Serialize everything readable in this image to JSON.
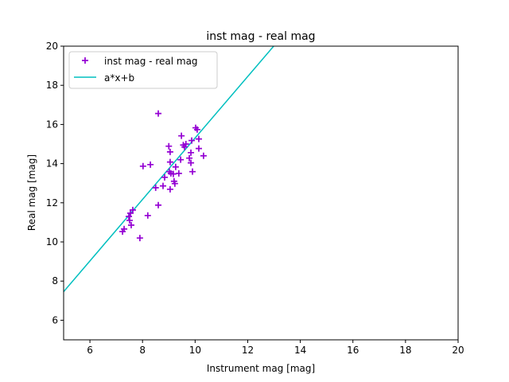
{
  "chart_data": {
    "type": "scatter",
    "title": "inst mag - real mag",
    "xlabel": "Instrument mag [mag]",
    "ylabel": "Real mag [mag]",
    "xlim": [
      5,
      20
    ],
    "ylim": [
      5,
      20
    ],
    "xticks": [
      6,
      8,
      10,
      12,
      14,
      16,
      18,
      20
    ],
    "yticks": [
      6,
      8,
      10,
      12,
      14,
      16,
      18,
      20
    ],
    "grid": false,
    "legend_placement": "top-left",
    "series": [
      {
        "name": "inst mag - real mag",
        "type": "scatter",
        "marker": "plus",
        "color": "#9400d3",
        "points": [
          [
            8.6,
            16.56
          ],
          [
            10.02,
            15.83
          ],
          [
            10.08,
            15.74
          ],
          [
            9.48,
            15.42
          ],
          [
            10.14,
            15.26
          ],
          [
            9.87,
            15.18
          ],
          [
            9.55,
            14.95
          ],
          [
            9.65,
            15.0
          ],
          [
            9.6,
            14.85
          ],
          [
            9.0,
            14.89
          ],
          [
            10.14,
            14.77
          ],
          [
            9.05,
            14.6
          ],
          [
            9.84,
            14.56
          ],
          [
            10.32,
            14.4
          ],
          [
            9.78,
            14.28
          ],
          [
            9.05,
            14.08
          ],
          [
            9.45,
            14.2
          ],
          [
            9.84,
            14.04
          ],
          [
            9.26,
            13.83
          ],
          [
            8.02,
            13.87
          ],
          [
            8.3,
            13.95
          ],
          [
            9.9,
            13.59
          ],
          [
            9.02,
            13.59
          ],
          [
            9.17,
            13.47
          ],
          [
            9.08,
            13.5
          ],
          [
            9.38,
            13.5
          ],
          [
            8.84,
            13.3
          ],
          [
            9.2,
            13.1
          ],
          [
            9.23,
            12.98
          ],
          [
            9.05,
            12.69
          ],
          [
            8.5,
            12.77
          ],
          [
            8.78,
            12.86
          ],
          [
            8.6,
            11.88
          ],
          [
            8.2,
            11.35
          ],
          [
            7.9,
            10.2
          ],
          [
            7.63,
            11.63
          ],
          [
            7.54,
            11.47
          ],
          [
            7.48,
            11.3
          ],
          [
            7.51,
            11.1
          ],
          [
            7.57,
            10.86
          ],
          [
            7.3,
            10.66
          ],
          [
            7.24,
            10.53
          ]
        ]
      },
      {
        "name": "a*x+b",
        "type": "line",
        "color": "#00bfbf",
        "a": 1.57,
        "b": -0.39
      }
    ]
  }
}
